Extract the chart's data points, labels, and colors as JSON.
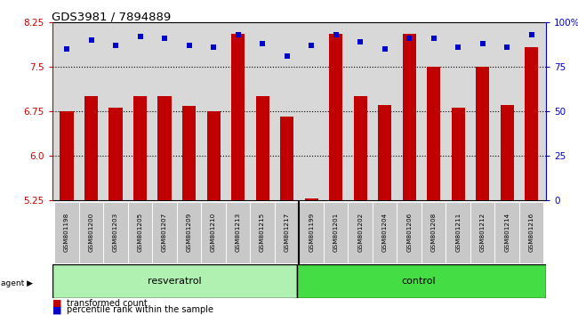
{
  "title": "GDS3981 / 7894889",
  "samples": [
    "GSM801198",
    "GSM801200",
    "GSM801203",
    "GSM801205",
    "GSM801207",
    "GSM801209",
    "GSM801210",
    "GSM801213",
    "GSM801215",
    "GSM801217",
    "GSM801199",
    "GSM801201",
    "GSM801202",
    "GSM801204",
    "GSM801206",
    "GSM801208",
    "GSM801211",
    "GSM801212",
    "GSM801214",
    "GSM801216"
  ],
  "bar_values": [
    6.75,
    7.0,
    6.8,
    7.0,
    7.0,
    6.83,
    6.75,
    8.05,
    7.0,
    6.65,
    5.27,
    8.05,
    7.0,
    6.85,
    8.05,
    7.5,
    6.8,
    7.5,
    6.85,
    7.82
  ],
  "pct_values": [
    85,
    90,
    87,
    92,
    91,
    87,
    86,
    93,
    88,
    81,
    87,
    93,
    89,
    85,
    91,
    91,
    86,
    88,
    86,
    93
  ],
  "resveratrol_count": 10,
  "control_count": 10,
  "ylim_left": [
    5.25,
    8.25
  ],
  "ylim_right": [
    0,
    100
  ],
  "yticks_left": [
    5.25,
    6.0,
    6.75,
    7.5,
    8.25
  ],
  "yticks_right": [
    0,
    25,
    50,
    75,
    100
  ],
  "grid_lines": [
    6.0,
    6.75,
    7.5
  ],
  "bar_color": "#c00000",
  "dot_color": "#0000cc",
  "bg_plot": "#d8d8d8",
  "bg_resveratrol": "#b0f0b0",
  "bg_control": "#44dd44",
  "agent_label": "agent",
  "resveratrol_label": "resveratrol",
  "control_label": "control",
  "legend_item_bar": "transformed count",
  "legend_item_dot": "percentile rank within the sample"
}
